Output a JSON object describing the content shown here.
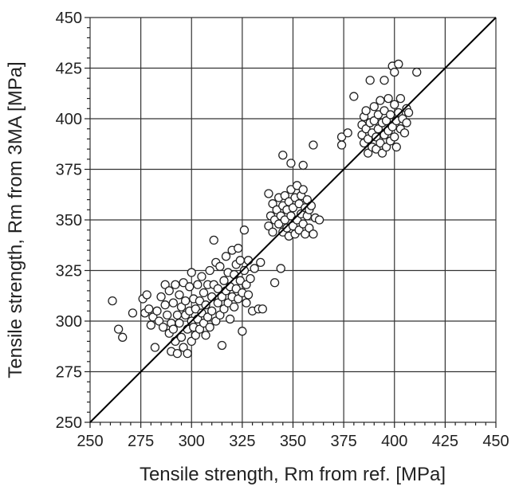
{
  "chart_data": {
    "type": "scatter",
    "title": "",
    "xlabel": "Tensile strength, Rm from ref. [MPa]",
    "ylabel": "Tensile strength, Rm from 3MA [MPa]",
    "xlim": [
      250,
      450
    ],
    "ylim": [
      250,
      450
    ],
    "xticks": [
      "250",
      "275",
      "300",
      "325",
      "350",
      "375",
      "400",
      "425",
      "450"
    ],
    "yticks": [
      "250",
      "275",
      "300",
      "325",
      "350",
      "375",
      "400",
      "425",
      "450"
    ],
    "grid": true,
    "reference_line": {
      "from": [
        250,
        250
      ],
      "to": [
        450,
        450
      ]
    },
    "marker": "open-circle",
    "colors": {
      "marker_edge": "#222222",
      "line": "#000000",
      "grid": "#333333"
    },
    "points": [
      [
        261,
        310
      ],
      [
        264,
        296
      ],
      [
        266,
        292
      ],
      [
        271,
        304
      ],
      [
        276,
        311
      ],
      [
        277,
        304
      ],
      [
        278,
        313
      ],
      [
        279,
        306
      ],
      [
        280,
        298
      ],
      [
        281,
        302
      ],
      [
        282,
        287
      ],
      [
        283,
        305
      ],
      [
        284,
        300
      ],
      [
        285,
        312
      ],
      [
        286,
        297
      ],
      [
        287,
        318
      ],
      [
        287,
        308
      ],
      [
        288,
        303
      ],
      [
        289,
        294
      ],
      [
        289,
        315
      ],
      [
        290,
        299
      ],
      [
        290,
        285
      ],
      [
        291,
        309
      ],
      [
        291,
        296
      ],
      [
        292,
        318
      ],
      [
        292,
        290
      ],
      [
        293,
        303
      ],
      [
        293,
        284
      ],
      [
        294,
        313
      ],
      [
        294,
        299
      ],
      [
        295,
        307
      ],
      [
        295,
        292
      ],
      [
        296,
        319
      ],
      [
        296,
        287
      ],
      [
        297,
        303
      ],
      [
        297,
        310
      ],
      [
        298,
        296
      ],
      [
        298,
        284
      ],
      [
        299,
        317
      ],
      [
        299,
        305
      ],
      [
        300,
        300
      ],
      [
        300,
        290
      ],
      [
        300,
        324
      ],
      [
        301,
        311
      ],
      [
        301,
        297
      ],
      [
        302,
        306
      ],
      [
        302,
        293
      ],
      [
        303,
        318
      ],
      [
        303,
        301
      ],
      [
        304,
        310
      ],
      [
        304,
        296
      ],
      [
        305,
        322
      ],
      [
        305,
        304
      ],
      [
        306,
        299
      ],
      [
        306,
        314
      ],
      [
        307,
        308
      ],
      [
        307,
        293
      ],
      [
        308,
        318
      ],
      [
        308,
        302
      ],
      [
        309,
        325
      ],
      [
        309,
        297
      ],
      [
        310,
        312
      ],
      [
        310,
        305
      ],
      [
        311,
        340
      ],
      [
        311,
        318
      ],
      [
        312,
        300
      ],
      [
        312,
        329
      ],
      [
        313,
        309
      ],
      [
        313,
        316
      ],
      [
        314,
        303
      ],
      [
        314,
        327
      ],
      [
        315,
        288
      ],
      [
        315,
        312
      ],
      [
        316,
        320
      ],
      [
        316,
        306
      ],
      [
        317,
        332
      ],
      [
        317,
        315
      ],
      [
        318,
        309
      ],
      [
        318,
        324
      ],
      [
        319,
        301
      ],
      [
        319,
        317
      ],
      [
        320,
        335
      ],
      [
        320,
        312
      ],
      [
        321,
        323
      ],
      [
        321,
        307
      ],
      [
        322,
        328
      ],
      [
        322,
        316
      ],
      [
        323,
        336
      ],
      [
        323,
        311
      ],
      [
        324,
        320
      ],
      [
        324,
        330
      ],
      [
        325,
        295
      ],
      [
        325,
        314
      ],
      [
        326,
        345
      ],
      [
        326,
        325
      ],
      [
        327,
        318
      ],
      [
        327,
        309
      ],
      [
        328,
        330
      ],
      [
        328,
        313
      ],
      [
        329,
        321
      ],
      [
        330,
        305
      ],
      [
        331,
        326
      ],
      [
        333,
        306
      ],
      [
        334,
        329
      ],
      [
        335,
        306
      ],
      [
        338,
        347
      ],
      [
        338,
        363
      ],
      [
        339,
        352
      ],
      [
        340,
        358
      ],
      [
        340,
        344
      ],
      [
        341,
        319
      ],
      [
        341,
        350
      ],
      [
        342,
        355
      ],
      [
        343,
        361
      ],
      [
        343,
        348
      ],
      [
        344,
        326
      ],
      [
        344,
        352
      ],
      [
        345,
        382
      ],
      [
        345,
        357
      ],
      [
        345,
        344
      ],
      [
        346,
        350
      ],
      [
        346,
        362
      ],
      [
        347,
        346
      ],
      [
        347,
        355
      ],
      [
        348,
        342
      ],
      [
        348,
        359
      ],
      [
        349,
        378
      ],
      [
        349,
        352
      ],
      [
        349,
        365
      ],
      [
        350,
        347
      ],
      [
        350,
        356
      ],
      [
        351,
        343
      ],
      [
        351,
        361
      ],
      [
        352,
        350
      ],
      [
        352,
        367
      ],
      [
        353,
        345
      ],
      [
        353,
        358
      ],
      [
        354,
        353
      ],
      [
        354,
        362
      ],
      [
        355,
        377
      ],
      [
        355,
        348
      ],
      [
        355,
        365
      ],
      [
        356,
        356
      ],
      [
        356,
        343
      ],
      [
        357,
        352
      ],
      [
        357,
        360
      ],
      [
        358,
        346
      ],
      [
        358,
        355
      ],
      [
        359,
        357
      ],
      [
        360,
        387
      ],
      [
        360,
        343
      ],
      [
        361,
        351
      ],
      [
        363,
        350
      ],
      [
        374,
        387
      ],
      [
        374,
        391
      ],
      [
        377,
        393
      ],
      [
        380,
        411
      ],
      [
        384,
        397
      ],
      [
        384,
        392
      ],
      [
        385,
        401
      ],
      [
        385,
        388
      ],
      [
        386,
        395
      ],
      [
        386,
        404
      ],
      [
        387,
        390
      ],
      [
        387,
        383
      ],
      [
        388,
        419
      ],
      [
        388,
        398
      ],
      [
        389,
        393
      ],
      [
        389,
        386
      ],
      [
        390,
        406
      ],
      [
        390,
        399
      ],
      [
        391,
        391
      ],
      [
        391,
        385
      ],
      [
        392,
        402
      ],
      [
        392,
        395
      ],
      [
        393,
        388
      ],
      [
        393,
        409
      ],
      [
        394,
        398
      ],
      [
        394,
        383
      ],
      [
        395,
        419
      ],
      [
        395,
        392
      ],
      [
        395,
        404
      ],
      [
        396,
        386
      ],
      [
        396,
        399
      ],
      [
        397,
        394
      ],
      [
        397,
        410
      ],
      [
        398,
        389
      ],
      [
        398,
        402
      ],
      [
        399,
        426
      ],
      [
        399,
        396
      ],
      [
        400,
        423
      ],
      [
        400,
        407
      ],
      [
        400,
        391
      ],
      [
        401,
        399
      ],
      [
        401,
        386
      ],
      [
        402,
        427
      ],
      [
        402,
        403
      ],
      [
        403,
        395
      ],
      [
        403,
        410
      ],
      [
        404,
        400
      ],
      [
        405,
        393
      ],
      [
        406,
        405
      ],
      [
        406,
        398
      ],
      [
        407,
        403
      ],
      [
        411,
        423
      ]
    ]
  }
}
